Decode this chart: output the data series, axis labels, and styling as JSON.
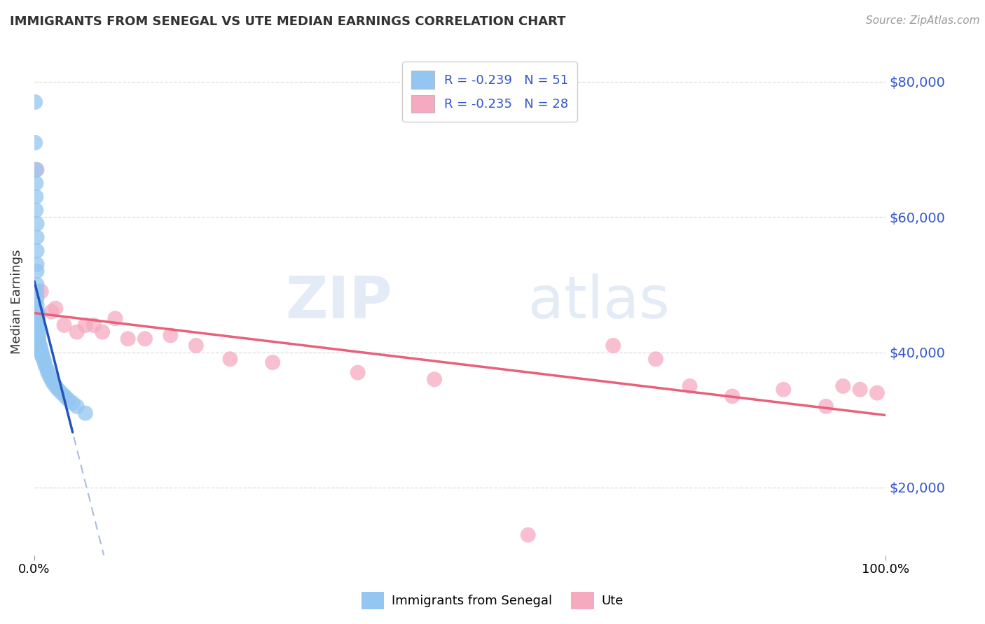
{
  "title": "IMMIGRANTS FROM SENEGAL VS UTE MEDIAN EARNINGS CORRELATION CHART",
  "source": "Source: ZipAtlas.com",
  "ylabel": "Median Earnings",
  "xlim": [
    0.0,
    1.0
  ],
  "ylim": [
    10000,
    85000
  ],
  "y_tick_values": [
    20000,
    40000,
    60000,
    80000
  ],
  "y_tick_labels": [
    "$20,000",
    "$40,000",
    "$60,000",
    "$80,000"
  ],
  "background_color": "#ffffff",
  "watermark_zip": "ZIP",
  "watermark_atlas": "atlas",
  "blue_scatter_color": "#93C6F0",
  "pink_scatter_color": "#F5AABF",
  "blue_line_color": "#2255BB",
  "pink_line_color": "#E8607A",
  "dashed_line_color": "#AABBDD",
  "tick_color": "#3355CC",
  "grid_color": "#DDDDDD",
  "title_color": "#333333",
  "source_color": "#999999",
  "senegal_x": [
    0.001,
    0.001,
    0.002,
    0.002,
    0.002,
    0.002,
    0.003,
    0.003,
    0.003,
    0.003,
    0.003,
    0.003,
    0.003,
    0.003,
    0.003,
    0.004,
    0.004,
    0.004,
    0.004,
    0.004,
    0.004,
    0.004,
    0.005,
    0.005,
    0.005,
    0.005,
    0.006,
    0.006,
    0.007,
    0.007,
    0.008,
    0.008,
    0.009,
    0.009,
    0.01,
    0.011,
    0.012,
    0.013,
    0.015,
    0.016,
    0.018,
    0.02,
    0.022,
    0.025,
    0.028,
    0.032,
    0.036,
    0.04,
    0.045,
    0.05,
    0.06
  ],
  "senegal_y": [
    77000,
    71000,
    67000,
    65000,
    63000,
    61000,
    59000,
    57000,
    55000,
    53000,
    52000,
    50000,
    49000,
    48000,
    47000,
    46000,
    45500,
    45000,
    44500,
    44000,
    43500,
    43000,
    42500,
    42000,
    41800,
    41500,
    41200,
    41000,
    40800,
    40500,
    40300,
    40000,
    39800,
    39500,
    39200,
    39000,
    38500,
    38000,
    37500,
    37000,
    36500,
    36000,
    35500,
    35000,
    34500,
    34000,
    33500,
    33000,
    32500,
    32000,
    31000
  ],
  "ute_x": [
    0.003,
    0.008,
    0.02,
    0.025,
    0.035,
    0.05,
    0.06,
    0.07,
    0.08,
    0.095,
    0.11,
    0.13,
    0.16,
    0.19,
    0.23,
    0.28,
    0.38,
    0.47,
    0.58,
    0.68,
    0.73,
    0.77,
    0.82,
    0.88,
    0.93,
    0.95,
    0.97,
    0.99
  ],
  "ute_y": [
    67000,
    49000,
    46000,
    46500,
    44000,
    43000,
    44000,
    44000,
    43000,
    45000,
    42000,
    42000,
    42500,
    41000,
    39000,
    38500,
    37000,
    36000,
    13000,
    41000,
    39000,
    35000,
    33500,
    34500,
    32000,
    35000,
    34500,
    34000
  ]
}
